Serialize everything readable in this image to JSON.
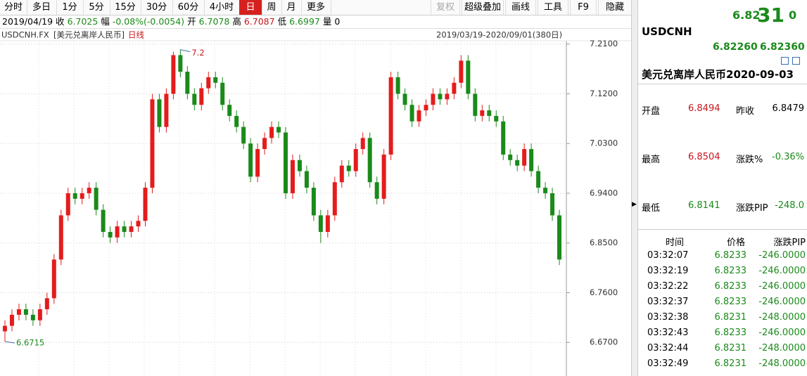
{
  "toolbar": {
    "periods": [
      "分时",
      "多日",
      "1分",
      "5分",
      "15分",
      "30分",
      "60分",
      "4小时",
      "日",
      "周",
      "月",
      "更多"
    ],
    "active_period": "日",
    "tools": [
      "复权",
      "超级叠加",
      "画线",
      "工具",
      "F9",
      "隐藏"
    ]
  },
  "info_bar": {
    "date": "2019/04/19",
    "close_label": "收",
    "close": "6.7025",
    "change_label": "幅",
    "change": "-0.08%(-0.0054)",
    "open_label": "开",
    "open": "6.7078",
    "high_label": "高",
    "high": "6.7087",
    "low_label": "低",
    "low": "6.6997",
    "volume_label": "量",
    "volume": "0"
  },
  "chart_data": {
    "type": "candlestick",
    "symbol": "USDCNH.FX",
    "name": "[美元兑离岸人民币]",
    "period": "日线",
    "range": "2019/03/19-2020/09/01(380日)",
    "up_color": "#e41c1c",
    "down_color": "#1a8a1a",
    "open": [
      6.69,
      6.7,
      6.72,
      6.73,
      6.72,
      6.71,
      6.73,
      6.75,
      6.82,
      6.9,
      6.94,
      6.93,
      6.94,
      6.95,
      6.91,
      6.87,
      6.86,
      6.88,
      6.87,
      6.88,
      6.89,
      6.95,
      7.11,
      7.06,
      7.12,
      7.19,
      7.16,
      7.12,
      7.1,
      7.13,
      7.15,
      7.14,
      7.1,
      7.08,
      7.06,
      7.03,
      6.97,
      7.02,
      7.04,
      7.06,
      7.05,
      6.94,
      7.0,
      6.98,
      6.95,
      6.9,
      6.87,
      6.9,
      6.96,
      6.99,
      6.98,
      7.02,
      7.04,
      6.96,
      6.93,
      7.01,
      7.15,
      7.12,
      7.1,
      7.07,
      7.09,
      7.1,
      7.12,
      7.11,
      7.12,
      7.14,
      7.18,
      7.12,
      7.08,
      7.09,
      7.08,
      7.07,
      7.01,
      7.0,
      6.99,
      7.02,
      6.98,
      6.95,
      6.94,
      6.9
    ],
    "high": [
      6.71,
      6.73,
      6.74,
      6.74,
      6.73,
      6.74,
      6.76,
      6.83,
      6.91,
      6.95,
      6.95,
      6.95,
      6.96,
      6.96,
      6.92,
      6.88,
      6.89,
      6.89,
      6.89,
      6.9,
      6.96,
      7.12,
      7.12,
      7.13,
      7.1962,
      7.2,
      7.17,
      7.13,
      7.14,
      7.16,
      7.16,
      7.15,
      7.11,
      7.09,
      7.07,
      7.04,
      7.03,
      7.05,
      7.07,
      7.07,
      7.06,
      7.01,
      7.01,
      6.99,
      6.96,
      6.91,
      6.91,
      6.97,
      7.0,
      7.0,
      7.03,
      7.05,
      7.05,
      6.97,
      7.02,
      7.16,
      7.16,
      7.13,
      7.11,
      7.1,
      7.11,
      7.13,
      7.13,
      7.13,
      7.15,
      7.19,
      7.19,
      7.13,
      7.1,
      7.1,
      7.09,
      7.08,
      7.02,
      7.01,
      7.03,
      7.03,
      6.99,
      6.96,
      6.95,
      6.91
    ],
    "low": [
      6.6715,
      6.69,
      6.71,
      6.71,
      6.7,
      6.7,
      6.72,
      6.74,
      6.81,
      6.89,
      6.92,
      6.92,
      6.93,
      6.9,
      6.86,
      6.85,
      6.85,
      6.86,
      6.86,
      6.87,
      6.88,
      6.94,
      7.05,
      7.05,
      7.11,
      7.15,
      7.11,
      7.09,
      7.09,
      7.12,
      7.13,
      7.09,
      7.07,
      7.05,
      7.02,
      6.96,
      6.96,
      7.01,
      7.03,
      7.04,
      6.93,
      6.93,
      6.97,
      6.94,
      6.89,
      6.85,
      6.86,
      6.89,
      6.95,
      6.97,
      6.97,
      7.01,
      6.95,
      6.92,
      6.92,
      7.0,
      7.11,
      7.09,
      7.06,
      7.06,
      7.08,
      7.09,
      7.1,
      7.1,
      7.11,
      7.13,
      7.11,
      7.07,
      7.07,
      7.07,
      7.06,
      7.0,
      6.99,
      6.98,
      6.98,
      6.97,
      6.94,
      6.93,
      6.89,
      6.81
    ],
    "close": [
      6.7,
      6.72,
      6.73,
      6.72,
      6.71,
      6.73,
      6.75,
      6.82,
      6.9,
      6.94,
      6.93,
      6.94,
      6.95,
      6.91,
      6.87,
      6.86,
      6.88,
      6.87,
      6.88,
      6.89,
      6.95,
      7.11,
      7.06,
      7.12,
      7.19,
      7.16,
      7.12,
      7.1,
      7.13,
      7.15,
      7.14,
      7.1,
      7.08,
      7.06,
      7.03,
      6.97,
      7.02,
      7.04,
      7.06,
      7.05,
      6.94,
      7.0,
      6.98,
      6.95,
      6.9,
      6.87,
      6.9,
      6.96,
      6.99,
      6.98,
      7.02,
      7.04,
      6.96,
      6.93,
      7.01,
      7.15,
      7.12,
      7.1,
      7.07,
      7.09,
      7.1,
      7.12,
      7.11,
      7.12,
      7.14,
      7.18,
      7.12,
      7.08,
      7.09,
      7.08,
      7.07,
      7.01,
      7.0,
      6.99,
      7.02,
      6.98,
      6.95,
      6.94,
      6.9,
      6.82
    ],
    "ylim": [
      6.613,
      7.216
    ],
    "yticks": [
      {
        "value": 6.67,
        "label": "6.6700"
      },
      {
        "value": 6.76,
        "label": "6.7600"
      },
      {
        "value": 6.85,
        "label": "6.8500"
      },
      {
        "value": 6.94,
        "label": "6.9400"
      },
      {
        "value": 7.03,
        "label": "7.0300"
      },
      {
        "value": 7.12,
        "label": "7.1200"
      },
      {
        "value": 7.21,
        "label": "7.2100"
      }
    ],
    "grid": true
  },
  "quote_panel": {
    "price_head": "6.82",
    "price_big": "31",
    "price_tail": "0",
    "symbol": "USDCNH",
    "bid": "6.82260",
    "ask": "6.82360",
    "title": "美元兑离岸人民币2020-09-03",
    "stats": [
      [
        "开盘",
        "6.8494",
        "昨收",
        "6.8479"
      ],
      [
        "最高",
        "6.8504",
        "涨跌%",
        "-0.36%"
      ],
      [
        "最低",
        "6.8141",
        "涨跌PIP",
        "-248.0"
      ]
    ],
    "ticks_header": [
      "时间",
      "价格",
      "涨跌PIP"
    ],
    "ticks": [
      [
        "03:32:07",
        "6.8233",
        "-246.0000"
      ],
      [
        "03:32:19",
        "6.8233",
        "-246.0000"
      ],
      [
        "03:32:22",
        "6.8233",
        "-246.0000"
      ],
      [
        "03:32:37",
        "6.8233",
        "-246.0000"
      ],
      [
        "03:32:38",
        "6.8231",
        "-248.0000"
      ],
      [
        "03:32:43",
        "6.8233",
        "-246.0000"
      ],
      [
        "03:32:44",
        "6.8231",
        "-248.0000"
      ],
      [
        "03:32:49",
        "6.8231",
        "-248.0000"
      ]
    ]
  }
}
